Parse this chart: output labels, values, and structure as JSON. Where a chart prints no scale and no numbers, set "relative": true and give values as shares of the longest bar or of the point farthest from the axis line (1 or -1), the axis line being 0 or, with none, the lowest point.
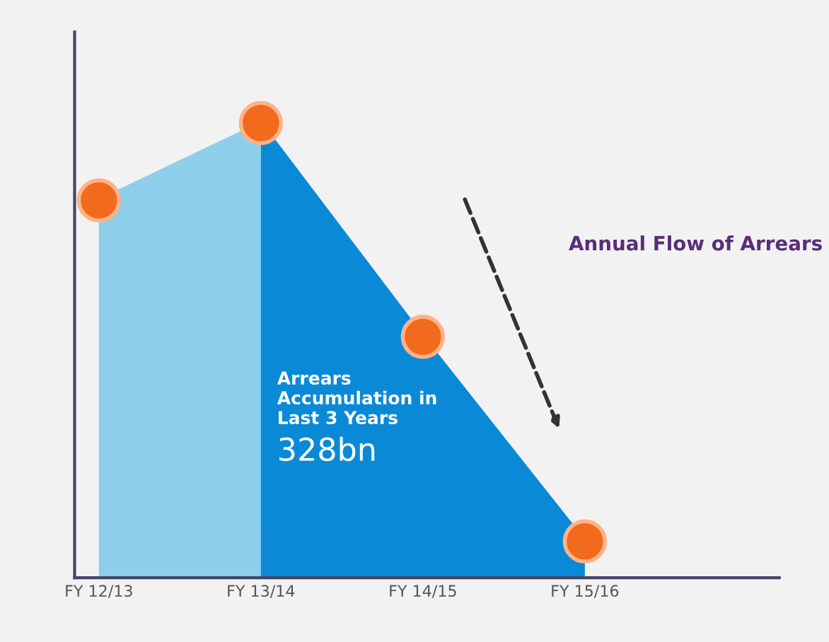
{
  "chart_data": {
    "type": "area",
    "relative": true,
    "categories": [
      "FY 12/13",
      "FY 13/14",
      "FY 14/15",
      "FY 15/16"
    ],
    "series": [
      {
        "color": "#8dcfea",
        "values": [
          0.83,
          1,
          null,
          null
        ]
      },
      {
        "color": "#0a8ad6",
        "values": [
          null,
          1,
          0.53,
          0.08
        ]
      },
      {
        "type": "scatter",
        "marker": "circle",
        "color": "#f26a1b",
        "values": [
          0.83,
          1,
          0.53,
          0.08
        ]
      }
    ],
    "annotations": [
      "Arrears Accumulation in Last 3 Years",
      "328bn",
      "Annual Flow of Arrears"
    ]
  }
}
